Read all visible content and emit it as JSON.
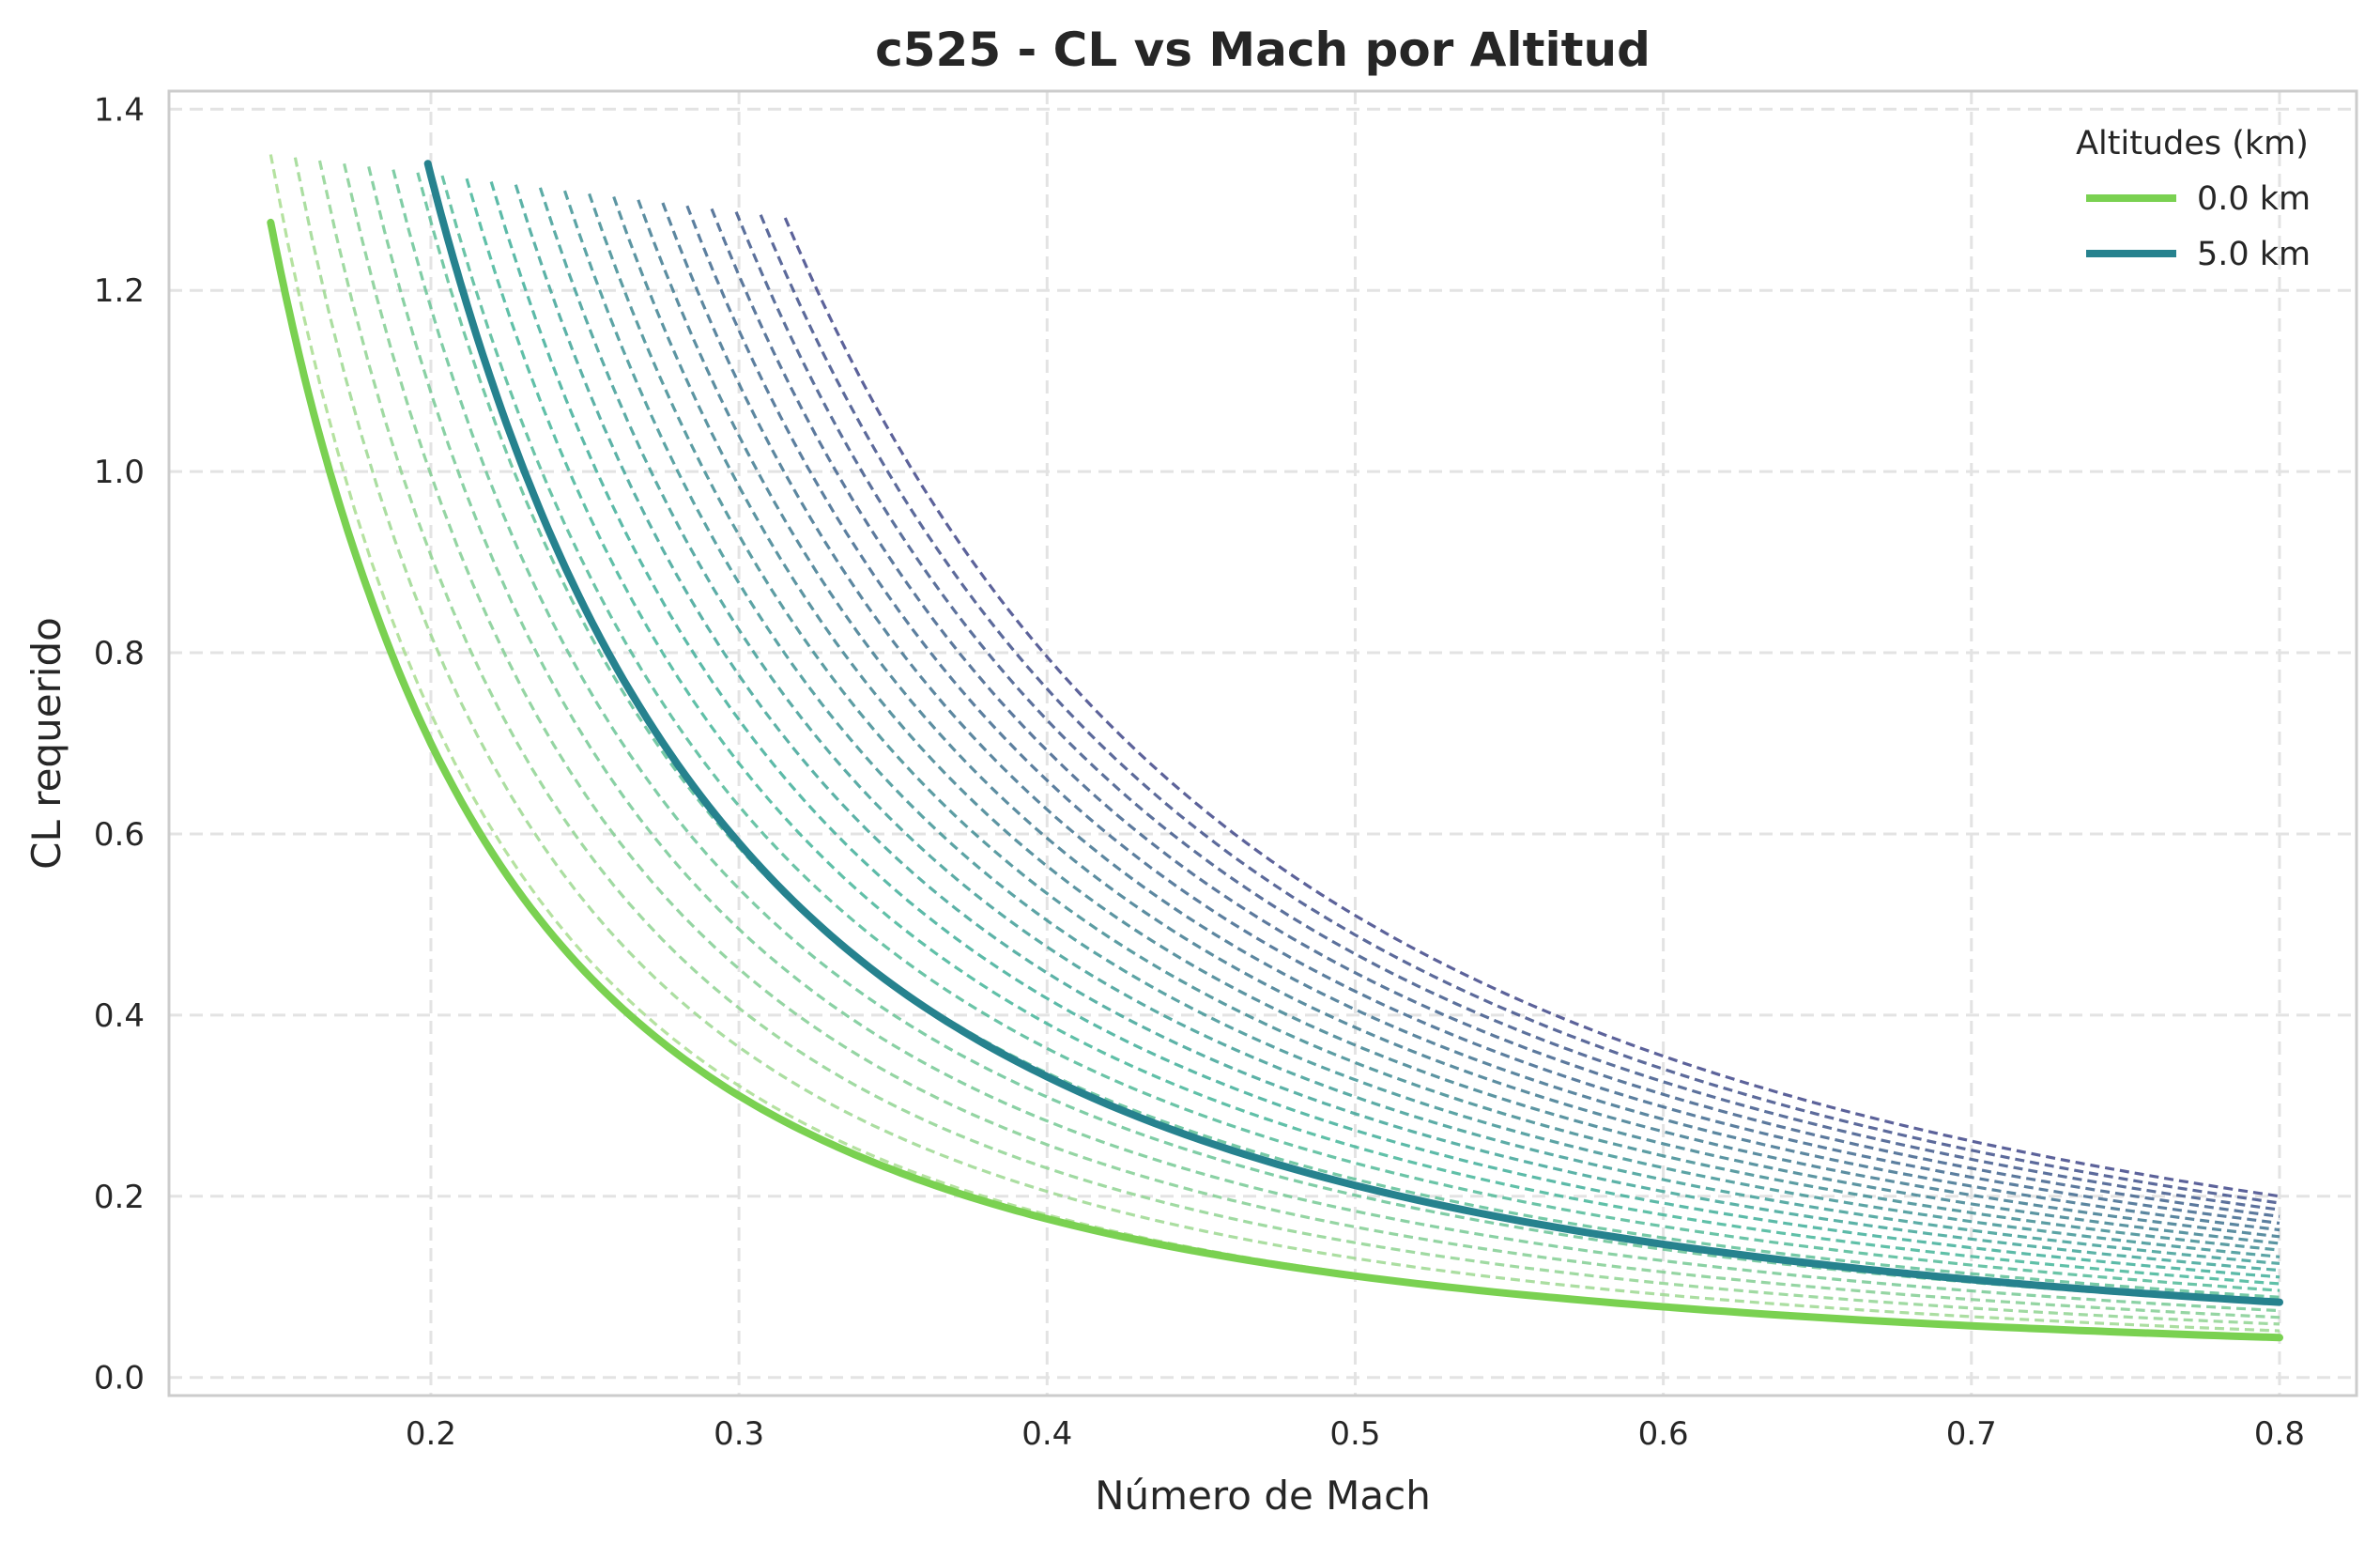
{
  "chart_data": {
    "type": "line",
    "title": "c525 - CL vs Mach por Altitud",
    "xlabel": "Número de Mach",
    "ylabel": "CL requerido",
    "xlim": [
      0.115,
      0.825
    ],
    "ylim": [
      -0.02,
      1.42
    ],
    "xticks": [
      "0.2",
      "0.3",
      "0.4",
      "0.5",
      "0.6",
      "0.7",
      "0.8"
    ],
    "yticks": [
      "0.0",
      "0.2",
      "0.4",
      "0.6",
      "0.8",
      "1.0",
      "1.2",
      "1.4"
    ],
    "grid": true,
    "legend_title": "Altitudes (km)",
    "legend_position": "top-right",
    "series": [
      {
        "name": "0.0 km",
        "color": "#7ad151",
        "style": "solid",
        "x": [
          0.148,
          0.16,
          0.18,
          0.2,
          0.25,
          0.3,
          0.35,
          0.4,
          0.5,
          0.6,
          0.7,
          0.8
        ],
        "y": [
          1.275,
          1.09,
          0.865,
          0.7,
          0.448,
          0.311,
          0.229,
          0.175,
          0.112,
          0.078,
          0.057,
          0.044
        ]
      },
      {
        "name": "5.0 km",
        "color": "#26828e",
        "style": "solid",
        "x": [
          0.199,
          0.22,
          0.25,
          0.3,
          0.35,
          0.4,
          0.5,
          0.6,
          0.7,
          0.8
        ],
        "y": [
          1.34,
          1.097,
          0.849,
          0.59,
          0.433,
          0.332,
          0.212,
          0.147,
          0.108,
          0.083
        ]
      }
    ],
    "background_lines": {
      "style": "dashed",
      "colors": [
        "#a8dd8f",
        "#3f4788"
      ],
      "count": 22,
      "start_x_range": [
        0.148,
        0.315
      ],
      "cl_at_mach_0.8_range": [
        0.044,
        0.2
      ]
    }
  }
}
